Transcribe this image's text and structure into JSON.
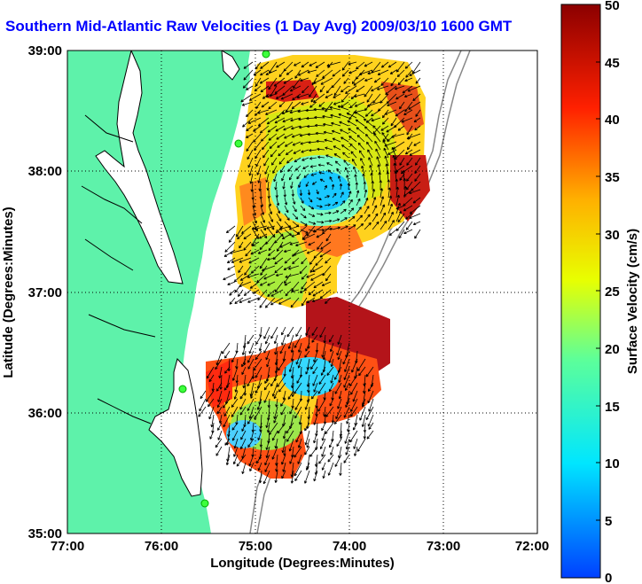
{
  "title": "Southern Mid-Atlantic Raw Velocities (1 Day Avg) 2009/03/10 1600 GMT",
  "x_axis": {
    "label": "Longitude (Degrees:Minutes)",
    "ticks": [
      "77:00",
      "76:00",
      "75:00",
      "74:00",
      "73:00",
      "72:00"
    ]
  },
  "y_axis": {
    "label": "Latitude (Degrees:Minutes)",
    "ticks": [
      "39:00",
      "38:00",
      "37:00",
      "36:00",
      "35:00"
    ]
  },
  "colorbar": {
    "label": "Surface Velocity (cm/s)",
    "ticks": [
      "0",
      "5",
      "10",
      "15",
      "20",
      "25",
      "30",
      "35",
      "40",
      "45",
      "50"
    ],
    "range": [
      0,
      50
    ],
    "colors": [
      "#0050ff",
      "#00e6ff",
      "#5cff9a",
      "#e8ff00",
      "#ffb000",
      "#ff2000",
      "#8b0000"
    ]
  },
  "map": {
    "lon_range": [
      -77,
      -72
    ],
    "lat_range": [
      35,
      39
    ],
    "land_color": "#5ef2aa",
    "grid": "dotted"
  }
}
